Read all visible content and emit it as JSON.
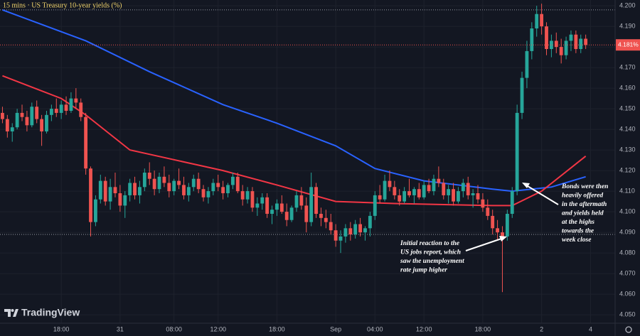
{
  "chart_data": {
    "type": "candlestick",
    "title": "15 mins · US Treasury 10-year yields (%)",
    "brand": "TradingView",
    "up_color": "#26a69a",
    "down_color": "#ef5350",
    "candles": [
      [
        4.148,
        4.151,
        4.143,
        4.145
      ],
      [
        4.145,
        4.147,
        4.136,
        4.139
      ],
      [
        4.139,
        4.143,
        4.134,
        4.141
      ],
      [
        4.141,
        4.15,
        4.14,
        4.148
      ],
      [
        4.148,
        4.152,
        4.144,
        4.146
      ],
      [
        4.146,
        4.149,
        4.139,
        4.142
      ],
      [
        4.142,
        4.153,
        4.141,
        4.151
      ],
      [
        4.151,
        4.154,
        4.143,
        4.145
      ],
      [
        4.145,
        4.147,
        4.132,
        4.139
      ],
      [
        4.139,
        4.149,
        4.138,
        4.147
      ],
      [
        4.147,
        4.152,
        4.144,
        4.15
      ],
      [
        4.15,
        4.155,
        4.146,
        4.148
      ],
      [
        4.148,
        4.154,
        4.145,
        4.152
      ],
      [
        4.152,
        4.156,
        4.147,
        4.149
      ],
      [
        4.149,
        4.158,
        4.148,
        4.155
      ],
      [
        4.155,
        4.16,
        4.15,
        4.153
      ],
      [
        4.153,
        4.155,
        4.144,
        4.146
      ],
      [
        4.146,
        4.148,
        4.118,
        4.121
      ],
      [
        4.121,
        4.122,
        4.088,
        4.095
      ],
      [
        4.095,
        4.108,
        4.093,
        4.106
      ],
      [
        4.106,
        4.118,
        4.104,
        4.115
      ],
      [
        4.115,
        4.117,
        4.103,
        4.105
      ],
      [
        4.105,
        4.116,
        4.101,
        4.112
      ],
      [
        4.112,
        4.119,
        4.107,
        4.109
      ],
      [
        4.109,
        4.113,
        4.1,
        4.103
      ],
      [
        4.103,
        4.11,
        4.097,
        4.108
      ],
      [
        4.108,
        4.116,
        4.105,
        4.114
      ],
      [
        4.114,
        4.117,
        4.106,
        4.108
      ],
      [
        4.108,
        4.115,
        4.104,
        4.112
      ],
      [
        4.112,
        4.121,
        4.11,
        4.119
      ],
      [
        4.119,
        4.124,
        4.113,
        4.116
      ],
      [
        4.116,
        4.12,
        4.108,
        4.111
      ],
      [
        4.111,
        4.119,
        4.109,
        4.117
      ],
      [
        4.117,
        4.122,
        4.112,
        4.114
      ],
      [
        4.114,
        4.118,
        4.107,
        4.11
      ],
      [
        4.11,
        4.116,
        4.108,
        4.115
      ],
      [
        4.115,
        4.121,
        4.111,
        4.113
      ],
      [
        4.113,
        4.117,
        4.106,
        4.108
      ],
      [
        4.108,
        4.114,
        4.105,
        4.112
      ],
      [
        4.112,
        4.118,
        4.11,
        4.116
      ],
      [
        4.116,
        4.119,
        4.109,
        4.111
      ],
      [
        4.111,
        4.113,
        4.105,
        4.107
      ],
      [
        4.107,
        4.112,
        4.104,
        4.11
      ],
      [
        4.11,
        4.116,
        4.108,
        4.114
      ],
      [
        4.114,
        4.118,
        4.11,
        4.112
      ],
      [
        4.112,
        4.115,
        4.106,
        4.109
      ],
      [
        4.109,
        4.114,
        4.107,
        4.113
      ],
      [
        4.113,
        4.119,
        4.111,
        4.117
      ],
      [
        4.117,
        4.119,
        4.109,
        4.11
      ],
      [
        4.11,
        4.113,
        4.103,
        4.106
      ],
      [
        4.106,
        4.112,
        4.104,
        4.11
      ],
      [
        4.11,
        4.112,
        4.1,
        4.102
      ],
      [
        4.102,
        4.107,
        4.098,
        4.104
      ],
      [
        4.104,
        4.109,
        4.101,
        4.107
      ],
      [
        4.107,
        4.109,
        4.097,
        4.099
      ],
      [
        4.099,
        4.103,
        4.094,
        4.101
      ],
      [
        4.101,
        4.106,
        4.098,
        4.104
      ],
      [
        4.104,
        4.108,
        4.099,
        4.1
      ],
      [
        4.1,
        4.104,
        4.093,
        4.096
      ],
      [
        4.096,
        4.103,
        4.095,
        4.102
      ],
      [
        4.102,
        4.11,
        4.1,
        4.108
      ],
      [
        4.108,
        4.112,
        4.101,
        4.103
      ],
      [
        4.103,
        4.107,
        4.09,
        4.095
      ],
      [
        4.095,
        4.119,
        4.093,
        4.112
      ],
      [
        4.112,
        4.114,
        4.097,
        4.099
      ],
      [
        4.099,
        4.102,
        4.093,
        4.097
      ],
      [
        4.097,
        4.101,
        4.092,
        4.095
      ],
      [
        4.095,
        4.099,
        4.089,
        4.091
      ],
      [
        4.091,
        4.094,
        4.083,
        4.086
      ],
      [
        4.086,
        4.091,
        4.08,
        4.088
      ],
      [
        4.088,
        4.094,
        4.085,
        4.092
      ],
      [
        4.092,
        4.095,
        4.086,
        4.089
      ],
      [
        4.089,
        4.096,
        4.087,
        4.094
      ],
      [
        4.094,
        4.097,
        4.088,
        4.09
      ],
      [
        4.09,
        4.093,
        4.086,
        4.092
      ],
      [
        4.092,
        4.1,
        4.088,
        4.098
      ],
      [
        4.098,
        4.11,
        4.096,
        4.108
      ],
      [
        4.108,
        4.113,
        4.104,
        4.106
      ],
      [
        4.106,
        4.118,
        4.105,
        4.115
      ],
      [
        4.115,
        4.12,
        4.11,
        4.112
      ],
      [
        4.112,
        4.115,
        4.106,
        4.108
      ],
      [
        4.108,
        4.111,
        4.103,
        4.105
      ],
      [
        4.105,
        4.112,
        4.104,
        4.11
      ],
      [
        4.11,
        4.116,
        4.107,
        4.108
      ],
      [
        4.108,
        4.112,
        4.104,
        4.111
      ],
      [
        4.111,
        4.114,
        4.106,
        4.107
      ],
      [
        4.107,
        4.115,
        4.106,
        4.113
      ],
      [
        4.113,
        4.116,
        4.109,
        4.11
      ],
      [
        4.11,
        4.118,
        4.108,
        4.116
      ],
      [
        4.116,
        4.122,
        4.112,
        4.114
      ],
      [
        4.114,
        4.116,
        4.106,
        4.108
      ],
      [
        4.108,
        4.113,
        4.104,
        4.111
      ],
      [
        4.111,
        4.114,
        4.103,
        4.105
      ],
      [
        4.105,
        4.112,
        4.104,
        4.11
      ],
      [
        4.11,
        4.116,
        4.107,
        4.114
      ],
      [
        4.114,
        4.117,
        4.106,
        4.108
      ],
      [
        4.108,
        4.111,
        4.102,
        4.109
      ],
      [
        4.109,
        4.113,
        4.104,
        4.106
      ],
      [
        4.106,
        4.109,
        4.1,
        4.102
      ],
      [
        4.102,
        4.106,
        4.096,
        4.098
      ],
      [
        4.098,
        4.101,
        4.089,
        4.092
      ],
      [
        4.092,
        4.096,
        4.086,
        4.09
      ],
      [
        4.09,
        4.093,
        4.061,
        4.088
      ],
      [
        4.088,
        4.101,
        4.086,
        4.099
      ],
      [
        4.099,
        4.112,
        4.097,
        4.11
      ],
      [
        4.11,
        4.152,
        4.108,
        4.148
      ],
      [
        4.148,
        4.168,
        4.145,
        4.165
      ],
      [
        4.165,
        4.183,
        4.16,
        4.178
      ],
      [
        4.178,
        4.192,
        4.174,
        4.189
      ],
      [
        4.189,
        4.2,
        4.185,
        4.196
      ],
      [
        4.196,
        4.201,
        4.186,
        4.19
      ],
      [
        4.19,
        4.192,
        4.176,
        4.179
      ],
      [
        4.179,
        4.186,
        4.175,
        4.183
      ],
      [
        4.183,
        4.187,
        4.177,
        4.18
      ],
      [
        4.18,
        4.184,
        4.172,
        4.176
      ],
      [
        4.176,
        4.185,
        4.174,
        4.183
      ],
      [
        4.183,
        4.188,
        4.178,
        4.186
      ],
      [
        4.186,
        4.188,
        4.177,
        4.179
      ],
      [
        4.179,
        4.186,
        4.177,
        4.184
      ],
      [
        4.184,
        4.186,
        4.179,
        4.181
      ]
    ],
    "lines": [
      {
        "color": "#2962ff",
        "x": [
          0,
          17,
          30,
          45,
          56,
          68,
          76,
          86,
          100,
          104,
          112,
          119
        ],
        "values": [
          4.198,
          4.183,
          4.168,
          4.152,
          4.143,
          4.132,
          4.121,
          4.115,
          4.111,
          4.11,
          4.112,
          4.117
        ]
      },
      {
        "color": "#f23645",
        "x": [
          0,
          12,
          17,
          26,
          45,
          56,
          68,
          80,
          100,
          104,
          110,
          119
        ],
        "values": [
          4.166,
          4.155,
          4.147,
          4.13,
          4.12,
          4.113,
          4.105,
          4.104,
          4.103,
          4.103,
          4.11,
          4.127
        ]
      }
    ],
    "range_lines": [
      4.198,
      4.089
    ],
    "last_price": {
      "value": 4.181,
      "label": "4.181%"
    },
    "xlim": [
      -0.5,
      125
    ],
    "xticks": [
      {
        "value": 12,
        "label": "18:00"
      },
      {
        "value": 24,
        "label": "31"
      },
      {
        "value": 35,
        "label": "08:00"
      },
      {
        "value": 44,
        "label": "12:00"
      },
      {
        "value": 56,
        "label": "18:00"
      },
      {
        "value": 68,
        "label": "Sep"
      },
      {
        "value": 76,
        "label": "04:00"
      },
      {
        "value": 86,
        "label": "12:00"
      },
      {
        "value": 98,
        "label": "18:00"
      },
      {
        "value": 110,
        "label": "2"
      },
      {
        "value": 120,
        "label": "4"
      }
    ],
    "ylim": [
      4.0459,
      4.2028
    ],
    "yticks": [
      {
        "value": 4.05,
        "label": "4.050"
      },
      {
        "value": 4.06,
        "label": "4.060"
      },
      {
        "value": 4.07,
        "label": "4.070"
      },
      {
        "value": 4.08,
        "label": "4.080"
      },
      {
        "value": 4.09,
        "label": "4.090"
      },
      {
        "value": 4.1,
        "label": "4.100"
      },
      {
        "value": 4.11,
        "label": "4.110"
      },
      {
        "value": 4.12,
        "label": "4.120"
      },
      {
        "value": 4.13,
        "label": "4.130"
      },
      {
        "value": 4.14,
        "label": "4.140"
      },
      {
        "value": 4.15,
        "label": "4.150"
      },
      {
        "value": 4.16,
        "label": "4.160"
      },
      {
        "value": 4.17,
        "label": "4.170"
      },
      {
        "value": 4.18,
        "label": "4.180"
      },
      {
        "value": 4.19,
        "label": "4.190"
      },
      {
        "value": 4.2,
        "label": "4.200"
      }
    ],
    "annotations": [
      {
        "lines": [
          "Initial reaction to the",
          "US jobs report, which",
          "saw the unemployment",
          "rate jump higher"
        ]
      },
      {
        "lines": [
          "Bonds were then",
          "heavily offered",
          "in the aftermath",
          "and yields held",
          "at the highs",
          "towards the",
          "week close"
        ]
      }
    ]
  }
}
